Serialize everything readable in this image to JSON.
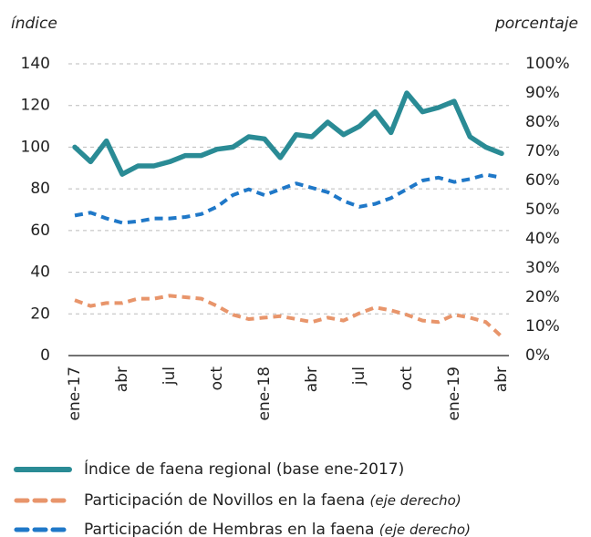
{
  "chart_data": {
    "type": "line",
    "y_label": "índice",
    "y2_label": "porcentaje",
    "categories": [
      "ene-17",
      null,
      null,
      "abr",
      null,
      null,
      "jul",
      null,
      null,
      "oct",
      null,
      null,
      "ene-18",
      null,
      null,
      "abr",
      null,
      null,
      "jul",
      null,
      null,
      "oct",
      null,
      null,
      "ene-19",
      null,
      null,
      "abr"
    ],
    "ylim": [
      0,
      140
    ],
    "yticks": [
      0,
      20,
      40,
      60,
      80,
      100,
      120,
      140
    ],
    "y2lim": [
      0,
      100
    ],
    "y2ticks": [
      {
        "value": 0,
        "label": "0%"
      },
      {
        "value": 10,
        "label": "10%"
      },
      {
        "value": 20,
        "label": "20%"
      },
      {
        "value": 30,
        "label": "30%"
      },
      {
        "value": 40,
        "label": "40%"
      },
      {
        "value": 50,
        "label": "50%"
      },
      {
        "value": 60,
        "label": "60%"
      },
      {
        "value": 70,
        "label": "70%"
      },
      {
        "value": 80,
        "label": "80%"
      },
      {
        "value": 90,
        "label": "90%"
      },
      {
        "value": 100,
        "label": "100%"
      }
    ],
    "grid": true,
    "y2_note": "(eje derecho)",
    "series": [
      {
        "name": "Índice de faena regional (base ene-2017)",
        "color": "#2a8b95",
        "values": [
          100,
          93,
          103,
          87,
          91,
          91,
          93,
          96,
          96,
          99,
          100,
          105,
          104,
          95,
          106,
          105,
          112,
          106,
          110,
          117,
          107,
          126,
          117,
          119,
          122,
          105,
          100,
          97
        ]
      },
      {
        "name": "Participación de Novillos en la faena",
        "color": "#e8956b",
        "axis": "y2",
        "dashed": true,
        "values": [
          19,
          17,
          18,
          18,
          19.5,
          19.5,
          20.5,
          20,
          19.5,
          17,
          14,
          12.5,
          13,
          13.5,
          12.5,
          11.5,
          13,
          12,
          14.5,
          16.5,
          15.5,
          14,
          12,
          11.5,
          14,
          13,
          11.5,
          6.5
        ]
      },
      {
        "name": "Participación de Hembras en la faena",
        "color": "#1f78c8",
        "axis": "y2",
        "dashed": true,
        "values": [
          48,
          49,
          47,
          45.5,
          46,
          47,
          47,
          47.5,
          48.5,
          51,
          55,
          57,
          55,
          57,
          59,
          57.5,
          56,
          53,
          51,
          52,
          54,
          57,
          60,
          61,
          59.5,
          60.5,
          62,
          61
        ]
      }
    ]
  }
}
